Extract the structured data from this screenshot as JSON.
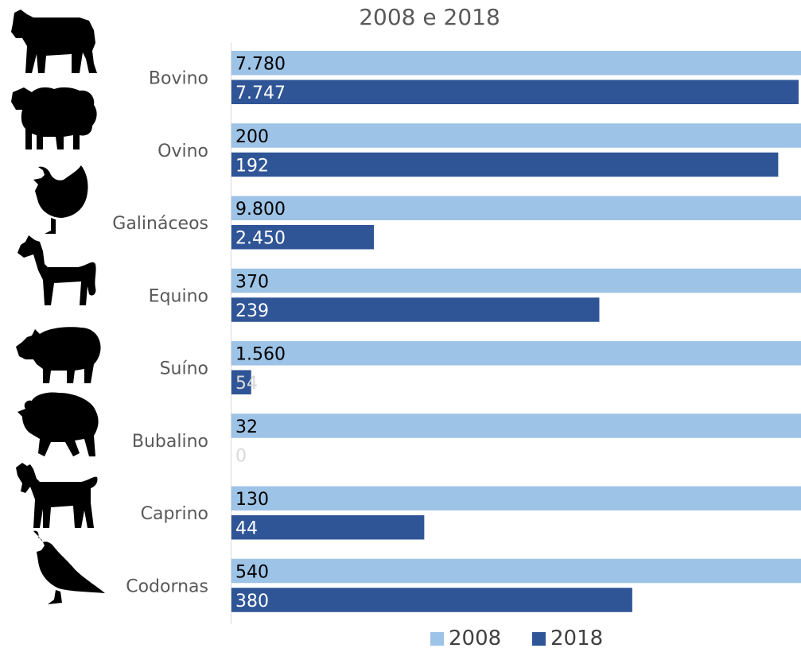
{
  "chart_data": {
    "type": "bar",
    "orientation": "horizontal",
    "title": "2008 e 2018",
    "categories": [
      "Bovino",
      "Ovino",
      "Galináceos",
      "Equino",
      "Suíno",
      "Bubalino",
      "Caprino",
      "Codornas"
    ],
    "series": [
      {
        "name": "2008",
        "color": "#9dc3e6",
        "values": [
          7780,
          200,
          9800,
          370,
          1560,
          32,
          130,
          540
        ],
        "labels": [
          "7.780",
          "200",
          "9.800",
          "370",
          "1.560",
          "32",
          "130",
          "540"
        ],
        "bar_fraction": [
          1,
          1,
          1,
          1,
          1,
          1,
          1,
          1
        ]
      },
      {
        "name": "2018",
        "color": "#2f5597",
        "values": [
          7747,
          192,
          2450,
          239,
          54,
          0,
          44,
          380
        ],
        "labels": [
          "7.747",
          "192",
          "2.450",
          "239",
          "54",
          "0",
          "44",
          "380"
        ],
        "bar_fraction": [
          0.9958,
          0.96,
          0.25,
          0.6459,
          0.0346,
          0,
          0.3385,
          0.7037
        ]
      }
    ],
    "legend_position": "bottom",
    "grid": false,
    "icons": [
      "cow-icon",
      "sheep-icon",
      "chicken-icon",
      "horse-icon",
      "pig-icon",
      "buffalo-icon",
      "goat-icon",
      "quail-icon"
    ]
  }
}
